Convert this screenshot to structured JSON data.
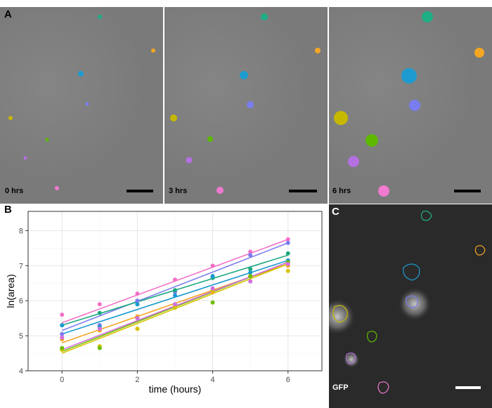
{
  "panels": {
    "A": {
      "letter": "A",
      "times": [
        "0 hrs",
        "3 hrs",
        "6 hrs"
      ]
    },
    "B": {
      "letter": "B"
    },
    "C": {
      "letter": "C",
      "label": "GFP"
    }
  },
  "colors": {
    "yellow": "#c6b800",
    "olive": "#a7b900",
    "orange": "#f5a623",
    "teal": "#1fae86",
    "blue": "#1d9bd0",
    "violet": "#7a7df0",
    "pink": "#f07ad0",
    "green": "#5fb800"
  },
  "chart_data": {
    "type": "scatter",
    "xlabel": "time (hours)",
    "ylabel": "ln(area)",
    "xlim": [
      -0.9,
      6.9
    ],
    "ylim": [
      4,
      8.55
    ],
    "xticks": [
      0,
      2,
      4,
      6
    ],
    "yticks": [
      4,
      5,
      6,
      7,
      8
    ],
    "grid": true,
    "series": [
      {
        "color": "#f46fc5",
        "x": [
          0,
          1,
          2,
          3,
          4,
          5,
          6
        ],
        "y": [
          5.6,
          5.9,
          6.2,
          6.6,
          7.0,
          7.4,
          7.75
        ],
        "fit": [
          5.37,
          7.75
        ]
      },
      {
        "color": "#7b7cf0",
        "x": [
          0,
          1,
          2,
          3,
          4,
          5,
          6
        ],
        "y": [
          5.05,
          5.3,
          6.0,
          6.25,
          6.7,
          7.3,
          7.65
        ],
        "fit": [
          5.15,
          7.65
        ]
      },
      {
        "color": "#1aa880",
        "x": [
          0,
          1,
          2,
          3,
          4,
          5,
          6
        ],
        "y": [
          5.3,
          5.65,
          5.9,
          6.3,
          6.65,
          6.9,
          7.35
        ],
        "fit": [
          5.3,
          7.3
        ]
      },
      {
        "color": "#1a9ad0",
        "x": [
          0,
          1,
          2,
          3,
          4,
          5,
          6
        ],
        "y": [
          5.3,
          5.25,
          5.9,
          6.15,
          6.7,
          6.8,
          7.15
        ],
        "fit": [
          5.05,
          7.15
        ]
      },
      {
        "color": "#f5a623",
        "x": [
          0,
          1,
          2,
          3,
          4,
          5,
          6
        ],
        "y": [
          4.9,
          5.15,
          5.55,
          5.85,
          6.25,
          6.7,
          7.0
        ],
        "fit": [
          4.8,
          7.05
        ]
      },
      {
        "color": "#d7c300",
        "x": [
          0,
          1,
          2,
          3,
          4,
          5,
          6
        ],
        "y": [
          4.6,
          4.7,
          5.2,
          5.8,
          6.3,
          6.7,
          6.85
        ],
        "fit": [
          4.5,
          7.05
        ]
      },
      {
        "color": "#6fbd00",
        "x": [
          0,
          1,
          2,
          3,
          4,
          5,
          6
        ],
        "y": [
          4.65,
          4.65,
          5.5,
          5.9,
          5.95,
          6.7,
          7.1
        ],
        "fit": [
          4.55,
          7.1
        ]
      },
      {
        "color": "#d36fe0",
        "x": [
          0,
          1,
          2,
          3,
          4,
          5,
          6
        ],
        "y": [
          4.95,
          5.2,
          5.5,
          5.9,
          6.35,
          6.55,
          7.05
        ],
        "fit": [
          4.6,
          7.1
        ]
      }
    ]
  }
}
